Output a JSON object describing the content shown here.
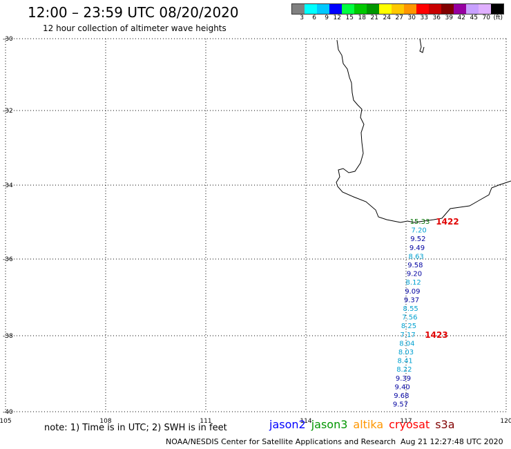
{
  "header": {
    "title": "12:00 – 23:59 UTC 08/20/2020",
    "subtitle": "12 hour collection of altimeter wave heights"
  },
  "colorbar": {
    "labels": [
      "3",
      "6",
      "9",
      "12",
      "15",
      "18",
      "21",
      "24",
      "27",
      "30",
      "33",
      "36",
      "39",
      "42",
      "45",
      "70",
      "(ft)"
    ],
    "colors": [
      "#808080",
      "#00ffff",
      "#00c8ff",
      "#0000ff",
      "#00ff40",
      "#00c800",
      "#009600",
      "#ffff00",
      "#ffc800",
      "#ff9600",
      "#ff0000",
      "#c80000",
      "#800000",
      "#9600a0",
      "#c8a0ff",
      "#e0b0ff",
      "#000000"
    ]
  },
  "map": {
    "lat_labels": [
      "-30",
      "-32",
      "-34",
      "-36",
      "-38",
      "-40"
    ],
    "lon_labels": [
      "105",
      "108",
      "111",
      "114",
      "117",
      "120"
    ],
    "grid": true
  },
  "satellite_track": {
    "points": [
      {
        "label": "15.33",
        "color": "#007000"
      },
      {
        "label": "7.20",
        "color": "#00a0d0"
      },
      {
        "label": "9.52",
        "color": "#0000a0"
      },
      {
        "label": "9.49",
        "color": "#0000a0"
      },
      {
        "label": "8.63",
        "color": "#00a0d0"
      },
      {
        "label": "9.58",
        "color": "#0000a0"
      },
      {
        "label": "9.20",
        "color": "#0000a0"
      },
      {
        "label": "8.12",
        "color": "#00a0d0"
      },
      {
        "label": "9.09",
        "color": "#0000a0"
      },
      {
        "label": "9.37",
        "color": "#0000a0"
      },
      {
        "label": "8.55",
        "color": "#00a0d0"
      },
      {
        "label": "7.56",
        "color": "#00a0d0"
      },
      {
        "label": "8.25",
        "color": "#00a0d0"
      },
      {
        "label": "7.17",
        "color": "#00a0d0"
      },
      {
        "label": "8.04",
        "color": "#00a0d0"
      },
      {
        "label": "8.03",
        "color": "#00a0d0"
      },
      {
        "label": "8.41",
        "color": "#00a0d0"
      },
      {
        "label": "8.22",
        "color": "#00a0d0"
      },
      {
        "label": "9.39",
        "color": "#0000a0"
      },
      {
        "label": "9.40",
        "color": "#0000a0"
      },
      {
        "label": "9.68",
        "color": "#0000a0"
      },
      {
        "label": "9.57",
        "color": "#0000a0"
      }
    ],
    "time_labels": [
      {
        "label": "1422",
        "color": "#e00000"
      },
      {
        "label": "1423",
        "color": "#e00000"
      }
    ]
  },
  "footer": {
    "note": "note: 1) Time is in UTC; 2) SWH is in feet",
    "credit": "NOAA/NESDIS Center for Satellite Applications and Research",
    "timestamp": "Aug 21 12:27:48 UTC 2020"
  },
  "satellites": [
    {
      "name": "jason2",
      "color": "#0000ff"
    },
    {
      "name": "jason3",
      "color": "#009600"
    },
    {
      "name": "altika",
      "color": "#ff9600"
    },
    {
      "name": "cryosat",
      "color": "#ff0000"
    },
    {
      "name": "s3a",
      "color": "#800000"
    }
  ]
}
